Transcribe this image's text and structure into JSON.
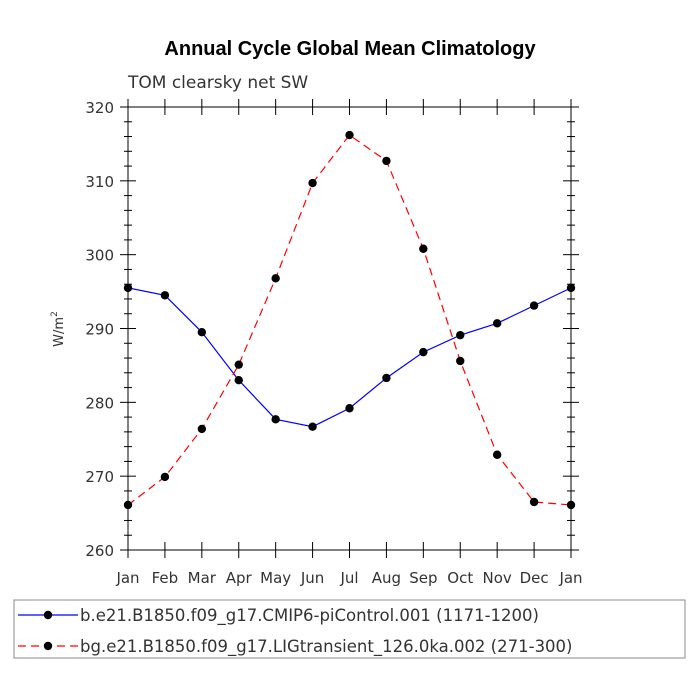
{
  "chart_data": {
    "type": "line",
    "title": "Annual Cycle Global Mean Climatology",
    "subtitle": "TOM clearsky net SW",
    "ylabel": "W/m",
    "ylabel_sup": "2",
    "xlabel": "",
    "categories": [
      "Jan",
      "Feb",
      "Mar",
      "Apr",
      "May",
      "Jun",
      "Jul",
      "Aug",
      "Sep",
      "Oct",
      "Nov",
      "Dec",
      "Jan"
    ],
    "ylim": [
      260,
      320
    ],
    "yticks": [
      260,
      270,
      280,
      290,
      300,
      310,
      320
    ],
    "series": [
      {
        "name": "b.e21.B1850.f09_g17.CMIP6-piControl.001 (1171-1200)",
        "color": "#0000ff",
        "dash": "solid",
        "values": [
          295.5,
          294.5,
          289.5,
          283.0,
          277.7,
          276.7,
          279.2,
          283.3,
          286.8,
          289.1,
          290.7,
          293.1,
          295.5
        ]
      },
      {
        "name": "bg.e21.B1850.f09_g17.LIGtransient_126.0ka.002 (271-300)",
        "color": "#ff0000",
        "dash": "dashed",
        "values": [
          266.1,
          269.9,
          276.4,
          285.1,
          296.8,
          309.7,
          316.2,
          312.7,
          300.8,
          285.6,
          272.9,
          266.5,
          266.1
        ]
      }
    ],
    "legend_position": "bottom"
  }
}
